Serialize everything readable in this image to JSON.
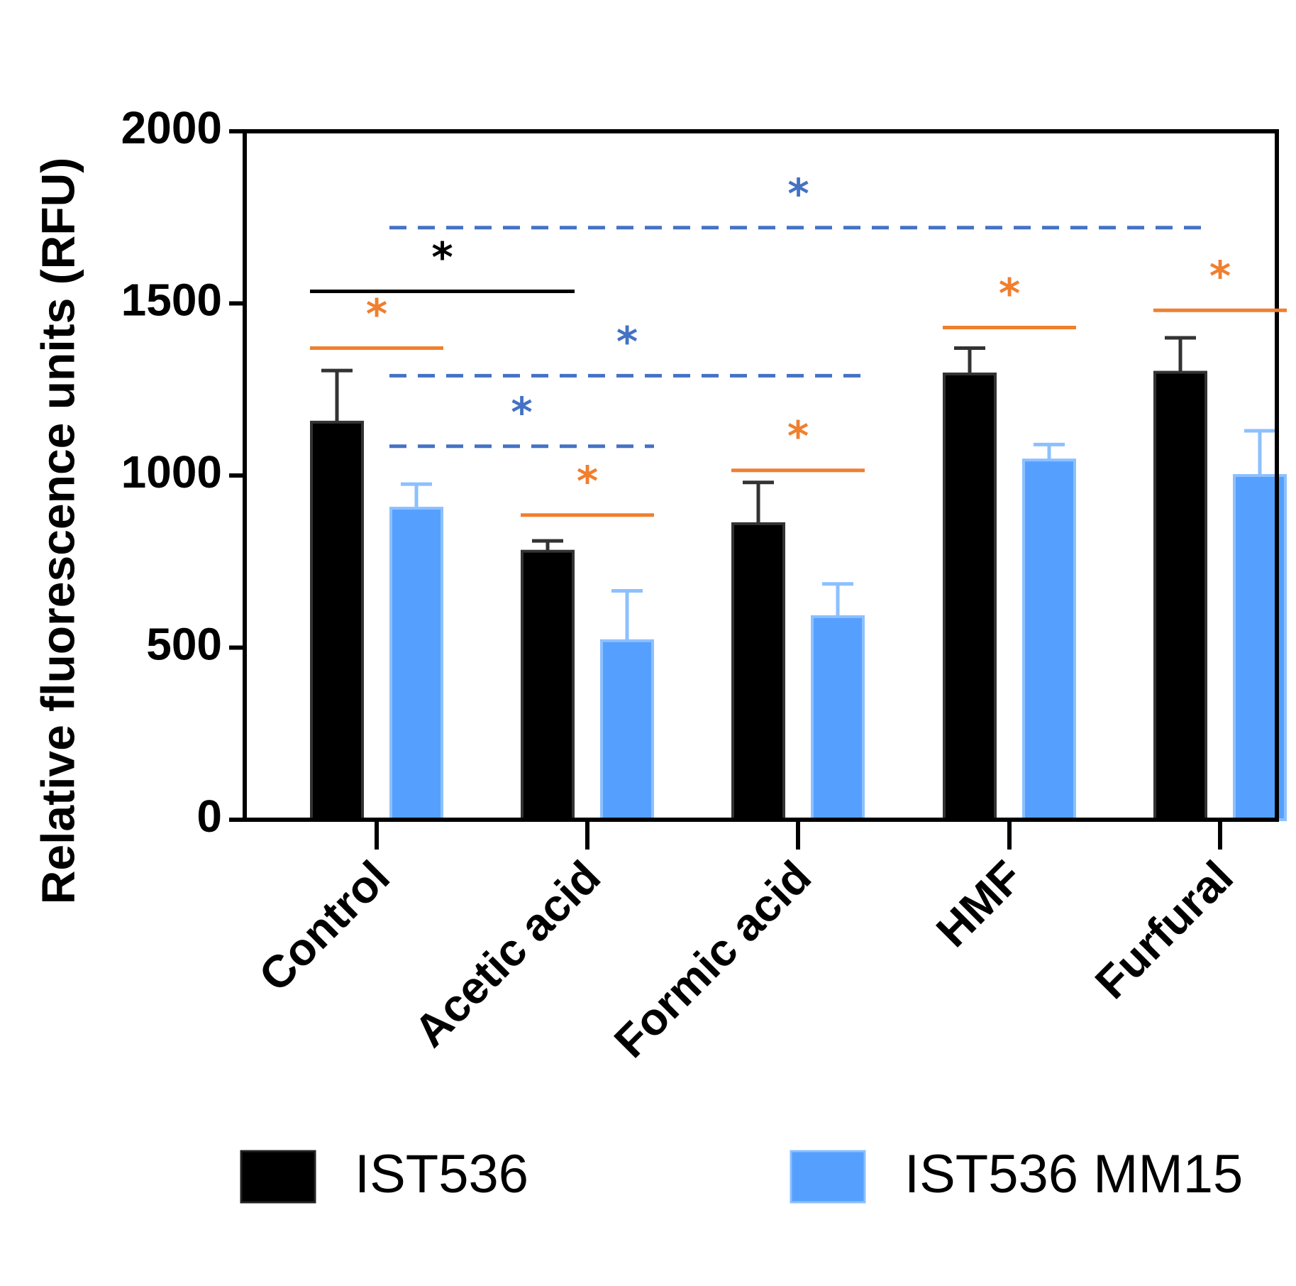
{
  "chart_data": {
    "type": "bar",
    "title": "",
    "xlabel": "",
    "ylabel": "Relative fluorescence units (RFU)",
    "ylim": [
      0,
      2000
    ],
    "yticks": [
      0,
      500,
      1000,
      1500,
      2000
    ],
    "categories": [
      "Control",
      "Acetic acid",
      "Formic acid",
      "HMF",
      "Furfural"
    ],
    "series": [
      {
        "name": "IST536",
        "color": "#000000",
        "values": [
          1155,
          780,
          860,
          1295,
          1300
        ],
        "errors": [
          150,
          30,
          120,
          75,
          100
        ]
      },
      {
        "name": "IST536 MM15",
        "color": "#55a0ff",
        "values": [
          905,
          520,
          590,
          1045,
          1000
        ],
        "errors": [
          70,
          145,
          95,
          45,
          130
        ]
      }
    ],
    "significance": [
      {
        "from": [
          0,
          0
        ],
        "to": [
          0,
          1
        ],
        "level": 1370,
        "label": "*",
        "color": "#f07f2e",
        "style": "solid"
      },
      {
        "from": [
          0,
          0
        ],
        "to": [
          1,
          0
        ],
        "level": 1535,
        "label": "*",
        "color": "#000000",
        "style": "solid"
      },
      {
        "from": [
          0,
          1
        ],
        "to": [
          1,
          1
        ],
        "level": 1085,
        "label": "*",
        "color": "#4472c4",
        "style": "dashed"
      },
      {
        "from": [
          0,
          1
        ],
        "to": [
          2,
          1
        ],
        "level": 1290,
        "label": "*",
        "color": "#4472c4",
        "style": "dashed"
      },
      {
        "from": [
          0,
          1
        ],
        "to": [
          4,
          0
        ],
        "level": 1720,
        "label": "*",
        "color": "#4472c4",
        "style": "dashed"
      },
      {
        "from": [
          1,
          0
        ],
        "to": [
          1,
          1
        ],
        "level": 885,
        "label": "*",
        "color": "#f07f2e",
        "style": "solid"
      },
      {
        "from": [
          2,
          0
        ],
        "to": [
          2,
          1
        ],
        "level": 1015,
        "label": "*",
        "color": "#f07f2e",
        "style": "solid"
      },
      {
        "from": [
          3,
          0
        ],
        "to": [
          3,
          1
        ],
        "level": 1430,
        "label": "*",
        "color": "#f07f2e",
        "style": "solid"
      },
      {
        "from": [
          4,
          0
        ],
        "to": [
          4,
          1
        ],
        "level": 1480,
        "label": "*",
        "color": "#f07f2e",
        "style": "solid"
      }
    ],
    "legend": {
      "position": "bottom"
    }
  }
}
